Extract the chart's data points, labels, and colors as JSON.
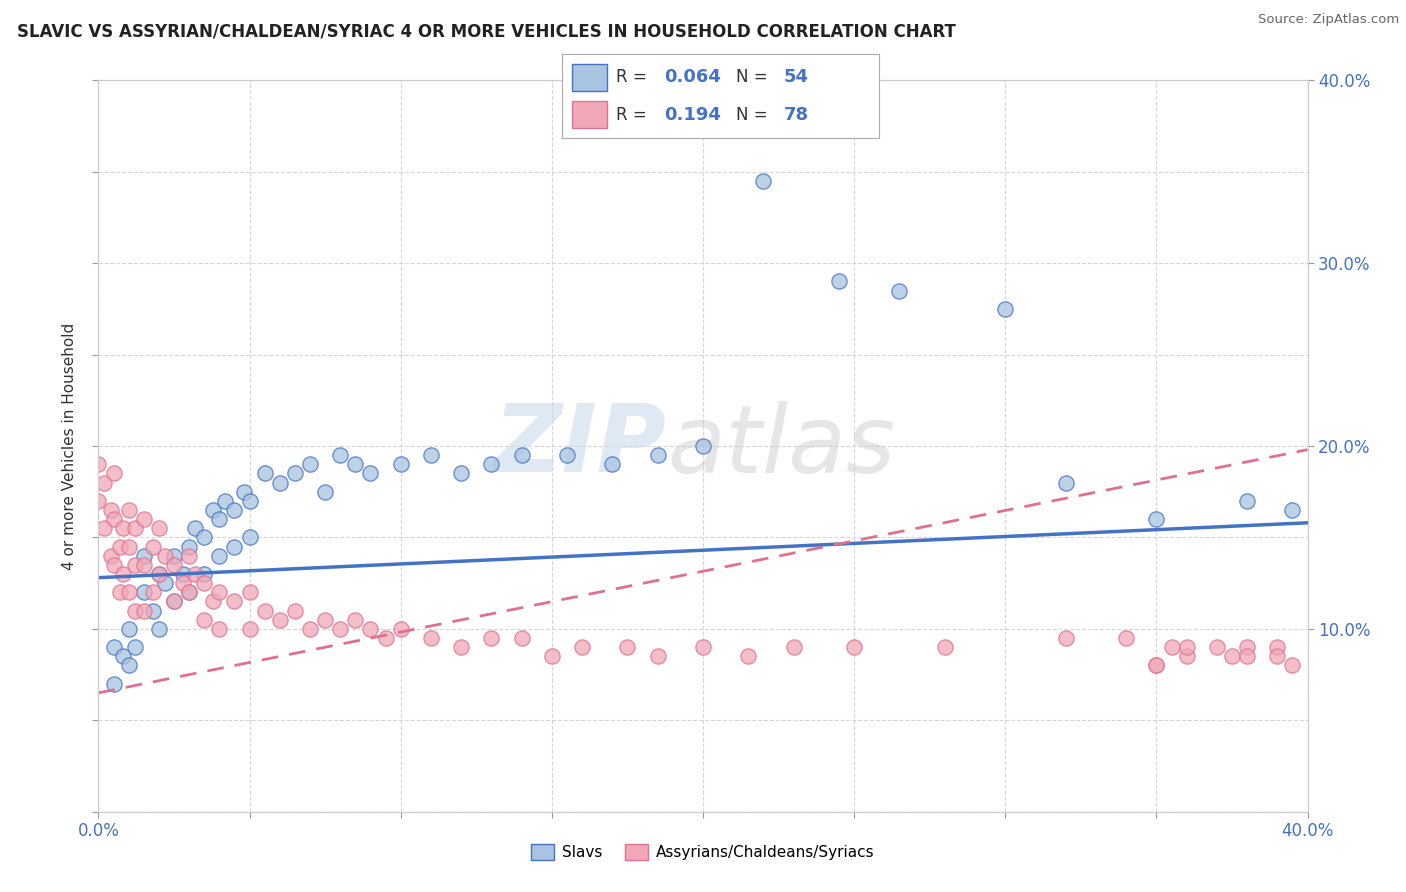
{
  "title": "SLAVIC VS ASSYRIAN/CHALDEAN/SYRIAC 4 OR MORE VEHICLES IN HOUSEHOLD CORRELATION CHART",
  "source": "Source: ZipAtlas.com",
  "legend_label1": "Slavs",
  "legend_label2": "Assyrians/Chaldeans/Syriacs",
  "R1": "0.064",
  "N1": "54",
  "R2": "0.194",
  "N2": "78",
  "color_slavs": "#a8c4e0",
  "color_assyrians": "#f0a8b8",
  "color_slavs_edge": "#4472c4",
  "color_assyrians_edge": "#e07090",
  "color_slavs_line": "#4472c4",
  "color_assyrians_line": "#e07090",
  "slavs_x": [
    0.005,
    0.005,
    0.008,
    0.01,
    0.01,
    0.012,
    0.015,
    0.015,
    0.018,
    0.02,
    0.02,
    0.022,
    0.025,
    0.025,
    0.028,
    0.03,
    0.03,
    0.032,
    0.035,
    0.035,
    0.038,
    0.04,
    0.04,
    0.042,
    0.045,
    0.045,
    0.048,
    0.05,
    0.05,
    0.055,
    0.06,
    0.065,
    0.07,
    0.075,
    0.08,
    0.085,
    0.09,
    0.1,
    0.11,
    0.12,
    0.13,
    0.14,
    0.155,
    0.17,
    0.185,
    0.2,
    0.22,
    0.245,
    0.265,
    0.3,
    0.32,
    0.35,
    0.38,
    0.395
  ],
  "slavs_y": [
    0.09,
    0.07,
    0.085,
    0.1,
    0.08,
    0.09,
    0.12,
    0.14,
    0.11,
    0.13,
    0.1,
    0.125,
    0.14,
    0.115,
    0.13,
    0.145,
    0.12,
    0.155,
    0.15,
    0.13,
    0.165,
    0.16,
    0.14,
    0.17,
    0.165,
    0.145,
    0.175,
    0.17,
    0.15,
    0.185,
    0.18,
    0.185,
    0.19,
    0.175,
    0.195,
    0.19,
    0.185,
    0.19,
    0.195,
    0.185,
    0.19,
    0.195,
    0.195,
    0.19,
    0.195,
    0.2,
    0.345,
    0.29,
    0.285,
    0.275,
    0.18,
    0.16,
    0.17,
    0.165
  ],
  "assyrians_x": [
    0.0,
    0.0,
    0.002,
    0.002,
    0.004,
    0.004,
    0.005,
    0.005,
    0.005,
    0.007,
    0.007,
    0.008,
    0.008,
    0.01,
    0.01,
    0.01,
    0.012,
    0.012,
    0.012,
    0.015,
    0.015,
    0.015,
    0.018,
    0.018,
    0.02,
    0.02,
    0.022,
    0.025,
    0.025,
    0.028,
    0.03,
    0.03,
    0.032,
    0.035,
    0.035,
    0.038,
    0.04,
    0.04,
    0.045,
    0.05,
    0.05,
    0.055,
    0.06,
    0.065,
    0.07,
    0.075,
    0.08,
    0.085,
    0.09,
    0.095,
    0.1,
    0.11,
    0.12,
    0.13,
    0.14,
    0.15,
    0.16,
    0.175,
    0.185,
    0.2,
    0.215,
    0.23,
    0.25,
    0.28,
    0.32,
    0.35,
    0.375,
    0.39,
    0.395,
    0.38,
    0.37,
    0.36,
    0.355,
    0.34,
    0.38,
    0.36,
    0.35,
    0.39
  ],
  "assyrians_y": [
    0.19,
    0.17,
    0.18,
    0.155,
    0.165,
    0.14,
    0.185,
    0.16,
    0.135,
    0.145,
    0.12,
    0.155,
    0.13,
    0.165,
    0.145,
    0.12,
    0.155,
    0.135,
    0.11,
    0.16,
    0.135,
    0.11,
    0.145,
    0.12,
    0.155,
    0.13,
    0.14,
    0.135,
    0.115,
    0.125,
    0.14,
    0.12,
    0.13,
    0.125,
    0.105,
    0.115,
    0.12,
    0.1,
    0.115,
    0.12,
    0.1,
    0.11,
    0.105,
    0.11,
    0.1,
    0.105,
    0.1,
    0.105,
    0.1,
    0.095,
    0.1,
    0.095,
    0.09,
    0.095,
    0.095,
    0.085,
    0.09,
    0.09,
    0.085,
    0.09,
    0.085,
    0.09,
    0.09,
    0.09,
    0.095,
    0.08,
    0.085,
    0.09,
    0.08,
    0.09,
    0.09,
    0.085,
    0.09,
    0.095,
    0.085,
    0.09,
    0.08,
    0.085
  ],
  "xmin": 0.0,
  "xmax": 0.4,
  "ymin": 0.0,
  "ymax": 0.4,
  "ylabel": "4 or more Vehicles in Household",
  "background_color": "#ffffff",
  "grid_color": "#cccccc",
  "slavs_line_x": [
    0.0,
    0.4
  ],
  "slavs_line_y": [
    0.128,
    0.158
  ],
  "assyrians_line_x": [
    0.0,
    0.4
  ],
  "assyrians_line_y": [
    0.065,
    0.198
  ]
}
